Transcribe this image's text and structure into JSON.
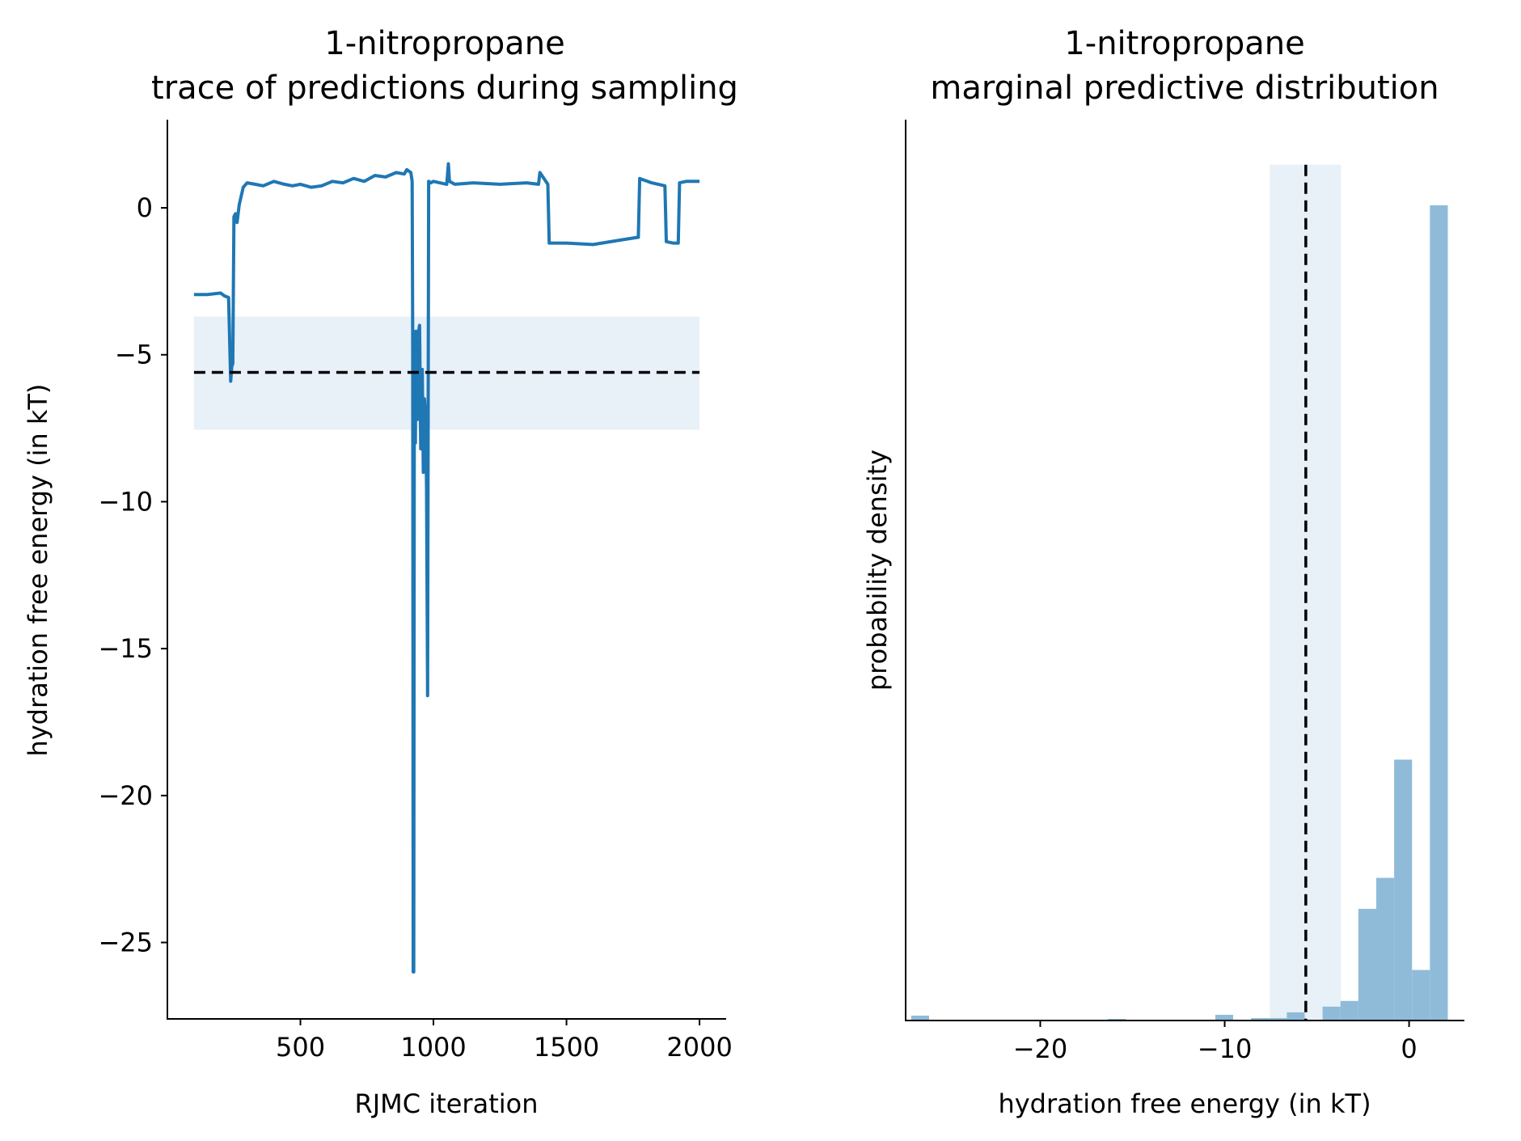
{
  "colors": {
    "trace": "#1f77b4",
    "band": "#e8f0f8",
    "hist": "#8fbbd9",
    "reference_line": "#000000"
  },
  "chart_data": [
    {
      "type": "line",
      "title_line1": "1-nitropropane",
      "title_line2": "trace of predictions during sampling",
      "xlabel": "RJMC iteration",
      "ylabel": "hydration free energy (in kT)",
      "xlim": [
        0,
        2100
      ],
      "ylim": [
        -27.6,
        3.0
      ],
      "xticks": [
        500,
        1000,
        1500,
        2000
      ],
      "xtick_labels": [
        "500",
        "1000",
        "1500",
        "2000"
      ],
      "yticks": [
        0,
        -5,
        -10,
        -15,
        -20,
        -25
      ],
      "ytick_labels": [
        "0",
        "−5",
        "−10",
        "−15",
        "−20",
        "−25"
      ],
      "grid": false,
      "reference_value": -5.6,
      "reference_band": [
        -7.55,
        -3.7
      ],
      "band_x": [
        100,
        2000
      ],
      "series": [
        {
          "x": [
            100,
            150,
            200,
            215,
            230,
            238,
            242,
            246,
            250,
            256,
            262,
            270,
            285,
            300,
            330,
            360,
            400,
            440,
            470,
            500,
            540,
            580,
            620,
            660,
            700,
            740,
            780,
            820,
            860,
            890,
            900,
            915,
            920,
            922,
            924,
            926,
            928,
            930,
            932,
            934,
            936,
            938,
            940,
            944,
            948,
            952,
            958,
            962,
            966,
            970,
            974,
            978,
            982,
            990,
            1000,
            1050,
            1056,
            1060,
            1080,
            1150,
            1250,
            1350,
            1395,
            1400,
            1430,
            1435,
            1500,
            1600,
            1700,
            1770,
            1775,
            1820,
            1870,
            1875,
            1900,
            1920,
            1925,
            1950,
            2000
          ],
          "y": [
            -2.95,
            -2.95,
            -2.9,
            -3.0,
            -3.05,
            -5.9,
            -5.4,
            -5.3,
            -0.3,
            -0.2,
            -0.5,
            0.1,
            0.7,
            0.85,
            0.8,
            0.75,
            0.9,
            0.8,
            0.75,
            0.8,
            0.7,
            0.75,
            0.9,
            0.85,
            1.0,
            0.9,
            1.1,
            1.05,
            1.2,
            1.15,
            1.3,
            1.2,
            0.9,
            -4.5,
            -26.0,
            -26.0,
            -4.8,
            -7.5,
            -8.0,
            -4.2,
            -5.4,
            -7.0,
            -7.2,
            -4.2,
            -4.0,
            -8.2,
            -5.5,
            -9.0,
            -6.5,
            -7.0,
            -9.5,
            -16.6,
            0.9,
            0.85,
            0.9,
            0.8,
            1.5,
            0.9,
            0.8,
            0.85,
            0.8,
            0.85,
            0.8,
            1.2,
            0.8,
            -1.2,
            -1.2,
            -1.25,
            -1.1,
            -1.0,
            1.0,
            0.85,
            0.75,
            -1.15,
            -1.2,
            -1.2,
            0.85,
            0.9,
            0.9
          ]
        }
      ]
    },
    {
      "type": "bar",
      "title_line1": "1-nitropropane",
      "title_line2": "marginal predictive distribution",
      "xlabel": "hydration free energy (in kT)",
      "ylabel": "probability density",
      "xlim": [
        -27.3,
        3.0
      ],
      "yticks_shown": false,
      "xticks": [
        -20,
        -10,
        0
      ],
      "xtick_labels": [
        "−20",
        "−10",
        "0"
      ],
      "grid": false,
      "reference_value": -5.6,
      "reference_band": [
        -7.55,
        -3.7
      ],
      "bin_edges": [
        -27.0,
        -26.03,
        -25.06,
        -24.09,
        -23.12,
        -22.15,
        -21.18,
        -20.21,
        -19.24,
        -18.27,
        -17.3,
        -16.33,
        -15.36,
        -14.39,
        -13.42,
        -12.45,
        -11.48,
        -10.51,
        -9.54,
        -8.57,
        -7.6,
        -6.63,
        -5.66,
        -4.69,
        -3.72,
        -2.75,
        -1.78,
        -0.81,
        0.16,
        1.13
      ],
      "values": [
        0.006,
        0.0,
        0.0,
        0.0,
        0.0,
        0.0,
        0.0,
        0.0,
        0.0,
        0.0,
        0.0,
        0.002,
        0.0,
        0.0,
        0.0,
        0.0,
        0.0,
        0.007,
        0.0,
        0.003,
        0.003,
        0.01,
        0.0,
        0.017,
        0.024,
        0.137,
        0.175,
        0.32,
        0.062,
        1.0
      ],
      "ylim": [
        0,
        1.105
      ]
    }
  ]
}
